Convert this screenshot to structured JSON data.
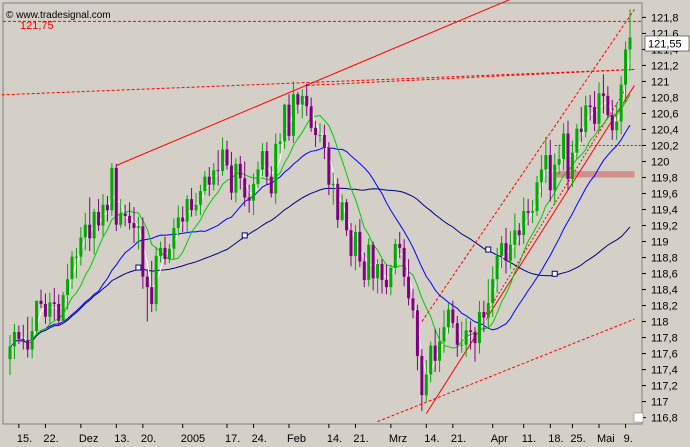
{
  "chart_data": {
    "type": "candlestick",
    "logo": "© www.tradesignal.com",
    "ylim": [
      116.72,
      121.98
    ],
    "xlim": [
      0,
      141
    ],
    "y_ticks": [
      "121,8",
      "121,6",
      "121,4",
      "121,2",
      "121",
      "120,8",
      "120,6",
      "120,4",
      "120,2",
      "120",
      "119,8",
      "119,6",
      "119,4",
      "119,2",
      "119",
      "118,8",
      "118,6",
      "118,4",
      "118,2",
      "118",
      "117,8",
      "117,6",
      "117,4",
      "117,2",
      "117",
      "116,8"
    ],
    "x_ticks": [
      {
        "i": 2,
        "label": "15."
      },
      {
        "i": 8,
        "label": "22."
      },
      {
        "i": 16,
        "label": "Dez"
      },
      {
        "i": 24,
        "label": "13."
      },
      {
        "i": 30,
        "label": "20."
      },
      {
        "i": 39,
        "label": "2005"
      },
      {
        "i": 49,
        "label": "17."
      },
      {
        "i": 55,
        "label": "24."
      },
      {
        "i": 63,
        "label": "Feb"
      },
      {
        "i": 72,
        "label": "14."
      },
      {
        "i": 78,
        "label": "21."
      },
      {
        "i": 86,
        "label": "Mrz"
      },
      {
        "i": 94,
        "label": "14."
      },
      {
        "i": 100,
        "label": "21."
      },
      {
        "i": 109,
        "label": "Apr"
      },
      {
        "i": 116,
        "label": "11."
      },
      {
        "i": 122,
        "label": "18."
      },
      {
        "i": 127,
        "label": "25."
      },
      {
        "i": 133,
        "label": "Mai"
      },
      {
        "i": 139,
        "label": "9."
      }
    ],
    "ref_level": {
      "label": "121,75",
      "value": 121.75,
      "color": "#ff0000"
    },
    "last_price": {
      "label": "121,55",
      "value": 121.55
    },
    "series_colors": {
      "ma_fast": "#ffffff",
      "ma_mid": "#00cc00",
      "ma_slow": "#0000ff",
      "ma_long": "#000080",
      "up": "#00aa00",
      "down": "#800080",
      "trend": "#ff0000",
      "highlight": "#d08080"
    },
    "candles": {
      "open": [
        117.53,
        117.69,
        117.87,
        117.78,
        117.77,
        117.65,
        117.88,
        118.26,
        118.22,
        118.06,
        118.24,
        118.22,
        118.01,
        118.33,
        118.53,
        118.81,
        118.81,
        119.05,
        119.21,
        119.04,
        119.37,
        119.2,
        119.46,
        119.39,
        119.92,
        119.21,
        119.35,
        119.32,
        119.23,
        119.17,
        119.19,
        118.56,
        118.43,
        118.22,
        118.82,
        118.92,
        118.78,
        118.91,
        119.17,
        119.3,
        119.25,
        119.53,
        119.39,
        119.46,
        119.63,
        119.81,
        119.71,
        119.89,
        119.88,
        120.15,
        119.95,
        119.61,
        119.97,
        119.79,
        119.55,
        119.51,
        119.72,
        119.9,
        120.13,
        119.81,
        119.6,
        120.22,
        120.25,
        120.71,
        120.32,
        120.84,
        120.71,
        120.82,
        120.69,
        120.42,
        120.33,
        120.33,
        120.17,
        119.71,
        119.72,
        119.27,
        119.49,
        119.14,
        118.82,
        119.12,
        118.75,
        118.52,
        118.96,
        118.54,
        118.72,
        118.52,
        118.43,
        118.67,
        118.97,
        118.92,
        118.56,
        118.29,
        118.14,
        117.57,
        117.08,
        117.34,
        117.7,
        117.51,
        117.75,
        117.93,
        118.15,
        117.98,
        117.71,
        117.71,
        117.89,
        117.87,
        117.73,
        118.12,
        118.05,
        118.23,
        118.53,
        118.82,
        118.98,
        118.76,
        118.96,
        119.14,
        119.08,
        119.38,
        119.36,
        119.38,
        119.74,
        119.9,
        120.08,
        119.64,
        119.96,
        120.03,
        120.35,
        119.78,
        120.11,
        120.41,
        120.37,
        120.7,
        120.68,
        120.47,
        120.85,
        120.82,
        120.58,
        120.39,
        120.5,
        120.96,
        121.4
      ],
      "high": [
        117.83,
        117.97,
        117.95,
        117.96,
        118.06,
        118.06,
        118.26,
        118.4,
        118.35,
        118.36,
        118.42,
        118.34,
        118.37,
        118.72,
        118.88,
        118.92,
        119.18,
        119.36,
        119.55,
        119.41,
        119.53,
        119.59,
        119.57,
        119.98,
        119.97,
        119.53,
        119.46,
        119.49,
        119.43,
        119.31,
        119.3,
        118.65,
        118.76,
        118.93,
        119.0,
        119.06,
        118.97,
        119.29,
        119.45,
        119.44,
        119.58,
        119.67,
        119.61,
        119.71,
        119.88,
        119.93,
        119.98,
        120.14,
        120.3,
        120.26,
        120.12,
        120.04,
        120.07,
        120.0,
        119.71,
        119.85,
        120.0,
        120.23,
        120.24,
        119.94,
        120.35,
        120.35,
        120.72,
        120.84,
        121.0,
        120.87,
        120.9,
        120.97,
        120.8,
        120.51,
        120.48,
        120.46,
        120.24,
        119.86,
        119.79,
        119.59,
        119.53,
        119.23,
        119.21,
        119.28,
        118.86,
        119.04,
        119.0,
        118.78,
        118.78,
        118.71,
        118.71,
        119.03,
        119.12,
        119.03,
        118.78,
        118.41,
        118.21,
        117.66,
        117.52,
        117.75,
        117.91,
        117.92,
        118.14,
        118.23,
        118.26,
        118.07,
        118.0,
        118.04,
        118.01,
        117.93,
        118.26,
        118.26,
        118.53,
        118.69,
        118.92,
        119.07,
        119.17,
        119.13,
        119.35,
        119.23,
        119.55,
        119.53,
        119.52,
        119.82,
        120.08,
        120.31,
        120.27,
        120.1,
        120.21,
        120.48,
        120.51,
        120.26,
        120.47,
        120.68,
        120.82,
        120.83,
        120.88,
        120.99,
        121.09,
        120.94,
        120.77,
        120.73,
        121.07,
        121.5,
        121.9
      ],
      "low": [
        117.33,
        117.53,
        117.72,
        117.65,
        117.55,
        117.54,
        117.85,
        118.17,
        117.97,
        117.97,
        118.02,
        117.95,
        117.98,
        118.15,
        118.41,
        118.54,
        118.7,
        118.89,
        118.88,
        118.84,
        119.13,
        119.07,
        119.25,
        119.32,
        119.13,
        119.17,
        119.19,
        119.15,
        118.98,
        118.9,
        118.41,
        118.0,
        118.12,
        118.13,
        118.74,
        118.71,
        118.73,
        118.78,
        119.07,
        119.12,
        119.1,
        119.31,
        119.32,
        119.33,
        119.58,
        119.57,
        119.64,
        119.7,
        119.82,
        119.9,
        119.52,
        119.49,
        119.65,
        119.44,
        119.36,
        119.33,
        119.67,
        119.82,
        119.71,
        119.55,
        119.47,
        120.1,
        120.16,
        120.26,
        120.23,
        120.6,
        120.54,
        120.57,
        120.37,
        120.18,
        120.24,
        120.03,
        119.58,
        119.46,
        119.17,
        119.25,
        119.07,
        118.69,
        118.64,
        118.68,
        118.43,
        118.44,
        118.39,
        118.35,
        118.35,
        118.34,
        118.33,
        118.59,
        118.79,
        118.44,
        118.2,
        118.04,
        117.39,
        116.88,
        117.0,
        117.24,
        117.37,
        117.37,
        117.61,
        117.85,
        117.92,
        117.56,
        117.61,
        117.56,
        117.65,
        117.5,
        117.6,
        117.87,
        117.91,
        118.06,
        118.36,
        118.67,
        118.6,
        118.66,
        118.79,
        118.95,
        118.97,
        119.2,
        119.23,
        119.32,
        119.55,
        119.73,
        119.5,
        119.46,
        119.84,
        119.89,
        119.64,
        119.68,
        120.03,
        120.24,
        120.3,
        120.51,
        120.38,
        120.37,
        120.6,
        120.54,
        120.27,
        120.27,
        120.34,
        120.74,
        121.13
      ],
      "close": [
        117.69,
        117.87,
        117.78,
        117.77,
        117.65,
        117.88,
        118.26,
        118.22,
        118.06,
        118.24,
        118.22,
        118.01,
        118.33,
        118.53,
        118.81,
        118.81,
        119.05,
        119.21,
        119.04,
        119.37,
        119.2,
        119.46,
        119.39,
        119.92,
        119.21,
        119.35,
        119.32,
        119.23,
        119.17,
        119.19,
        118.56,
        118.43,
        118.22,
        118.82,
        118.92,
        118.78,
        118.91,
        119.17,
        119.3,
        119.25,
        119.53,
        119.39,
        119.46,
        119.63,
        119.81,
        119.71,
        119.89,
        119.88,
        120.15,
        119.95,
        119.61,
        119.97,
        119.79,
        119.55,
        119.51,
        119.72,
        119.9,
        120.13,
        119.81,
        119.6,
        120.22,
        120.25,
        120.71,
        120.32,
        120.84,
        120.71,
        120.82,
        120.69,
        120.42,
        120.33,
        120.33,
        120.17,
        119.71,
        119.72,
        119.27,
        119.49,
        119.14,
        118.82,
        119.12,
        118.75,
        118.52,
        118.96,
        118.54,
        118.72,
        118.52,
        118.43,
        118.67,
        118.97,
        118.92,
        118.56,
        118.29,
        118.14,
        117.57,
        117.08,
        117.34,
        117.7,
        117.51,
        117.75,
        117.93,
        118.15,
        117.98,
        117.71,
        117.71,
        117.89,
        117.87,
        117.73,
        118.12,
        118.05,
        118.23,
        118.53,
        118.82,
        118.98,
        118.76,
        118.96,
        119.14,
        119.08,
        119.38,
        119.36,
        119.38,
        119.74,
        119.9,
        120.08,
        119.64,
        119.96,
        120.03,
        120.35,
        119.78,
        120.11,
        120.41,
        120.37,
        120.7,
        120.68,
        120.47,
        120.85,
        120.82,
        120.58,
        120.39,
        120.5,
        120.96,
        121.4,
        121.55
      ]
    }
  }
}
